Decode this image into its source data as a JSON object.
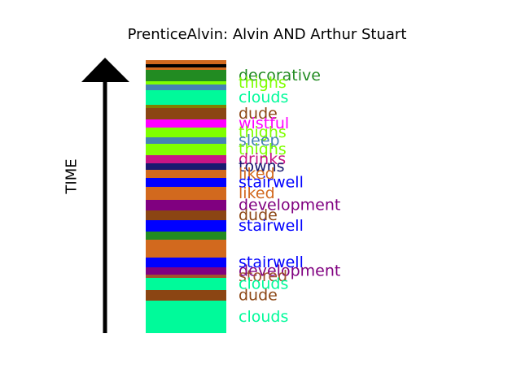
{
  "chart_data": {
    "type": "bar",
    "title": "PrenticeAlvin: Alvin AND Arthur Stuart",
    "ylabel": "TIME",
    "xlabel": "",
    "segments": [
      {
        "color": "#D2691E"
      },
      {
        "color": "#000000"
      },
      {
        "color": "#D2691E"
      },
      {
        "color": "#228B22",
        "label": "decorative"
      },
      {
        "color": "#7FFF00",
        "label": "thighs"
      },
      {
        "color": "#4682B4"
      },
      {
        "color": "#00FA9A",
        "label": "clouds"
      },
      {
        "color": "#808000"
      },
      {
        "color": "#8B4513",
        "label": "dude"
      },
      {
        "color": "#FF00FF",
        "label": "wistful"
      },
      {
        "color": "#7FFF00",
        "label": "thighs"
      },
      {
        "color": "#4682B4",
        "label": "sleep"
      },
      {
        "color": "#7FFF00",
        "label": "thighs"
      },
      {
        "color": "#C71585",
        "label": "drinks"
      },
      {
        "color": "#191970",
        "label": "towns"
      },
      {
        "color": "#D2691E",
        "label": "liked"
      },
      {
        "color": "#0000FF",
        "label": "stairwell"
      },
      {
        "color": "#D2691E",
        "label": "liked"
      },
      {
        "color": "#800080",
        "label": "development"
      },
      {
        "color": "#8B4513",
        "label": "dude"
      },
      {
        "color": "#0000FF",
        "label": "stairwell"
      },
      {
        "color": "#228B22"
      },
      {
        "color": "#D2691E"
      },
      {
        "color": "#0000FF",
        "label": "stairwell"
      },
      {
        "color": "#800080",
        "label": "development"
      },
      {
        "color": "#A0522D",
        "label": "stored"
      },
      {
        "color": "#00FA9A",
        "label": "clouds"
      },
      {
        "color": "#8B4513",
        "label": "dude"
      },
      {
        "color": "#00FA9A",
        "label": "clouds"
      }
    ]
  }
}
